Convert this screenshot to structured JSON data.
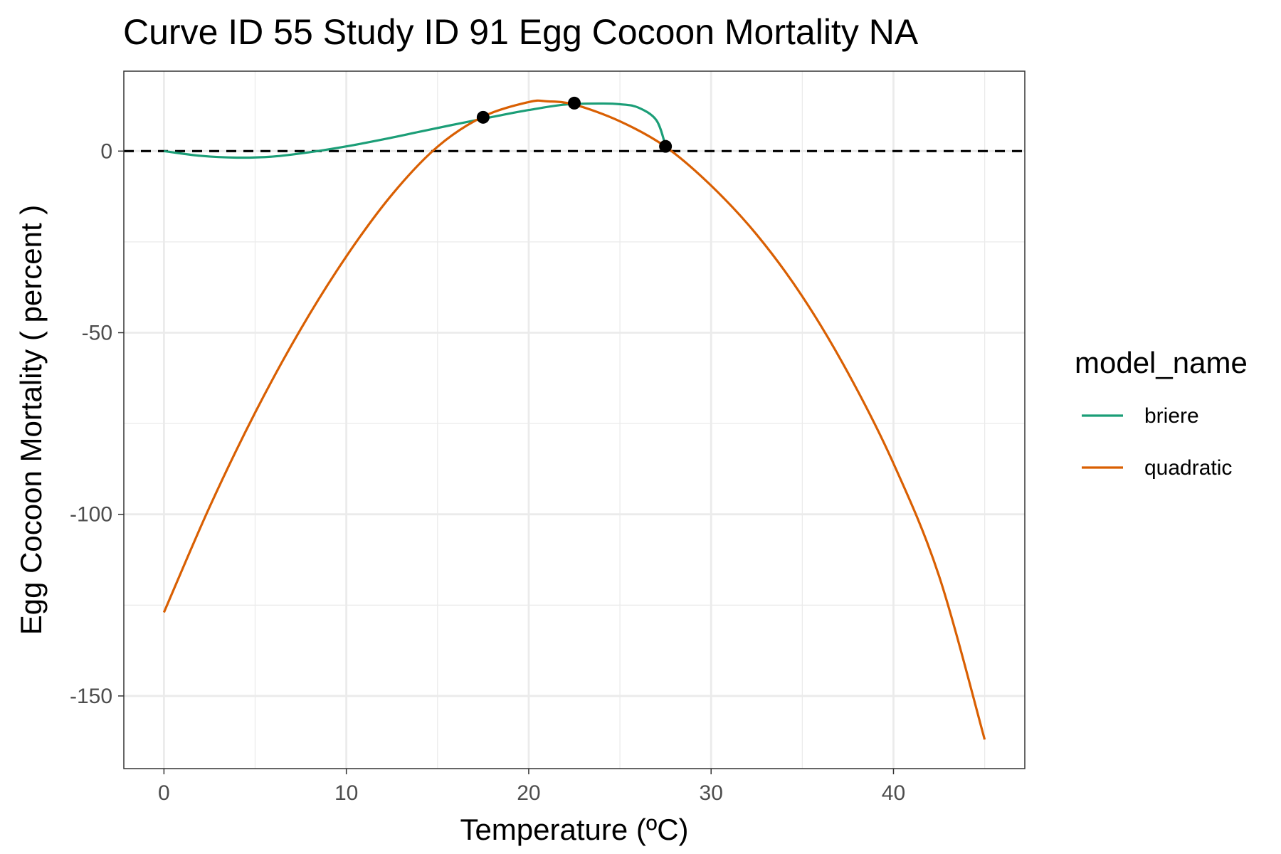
{
  "chart_data": {
    "type": "line",
    "title": "Curve ID 55 Study ID 91 Egg Cocoon Mortality NA",
    "xlabel": "Temperature (ºC)",
    "ylabel": "Egg Cocoon Mortality ( percent )",
    "xlim": [
      -2.2,
      47.2
    ],
    "ylim": [
      -170,
      22
    ],
    "x_ticks": [
      0,
      10,
      20,
      30,
      40
    ],
    "y_ticks": [
      0,
      -50,
      -100,
      -150
    ],
    "x_tick_labels": [
      "0",
      "10",
      "20",
      "30",
      "40"
    ],
    "y_tick_labels": [
      "0",
      "-50",
      "-100",
      "-150"
    ],
    "grid": true,
    "legend_position": "right",
    "legend_title": "model_name",
    "reference_line": {
      "y": 0,
      "style": "dashed",
      "color": "#000000"
    },
    "series": [
      {
        "name": "briere",
        "color": "#1b9e77",
        "x": [
          0,
          2,
          4,
          6,
          8,
          10,
          12,
          14,
          16,
          18,
          20,
          22,
          24,
          25,
          26,
          27,
          27.5
        ],
        "y": [
          0,
          -1.3,
          -1.8,
          -1.5,
          -0.3,
          1.3,
          3.2,
          5.3,
          7.4,
          9.4,
          11.3,
          12.8,
          13.1,
          12.9,
          12.0,
          8.5,
          1.5
        ]
      },
      {
        "name": "quadratic",
        "color": "#d95f02",
        "x": [
          0,
          2.5,
          5,
          7.5,
          10,
          12.5,
          15,
          17.5,
          20,
          21,
          22.5,
          25,
          27.5,
          30,
          32.5,
          35,
          37.5,
          40,
          42.5,
          45
        ],
        "y": [
          -127,
          -98,
          -72,
          -49,
          -29,
          -12,
          1.2,
          9.5,
          13.5,
          13.7,
          12.8,
          8.2,
          1.2,
          -9.5,
          -23,
          -40,
          -61,
          -86,
          -117,
          -162
        ]
      }
    ],
    "points": {
      "color": "#000000",
      "x": [
        17.5,
        22.5,
        27.5
      ],
      "y": [
        9.3,
        13.2,
        1.3
      ]
    }
  }
}
